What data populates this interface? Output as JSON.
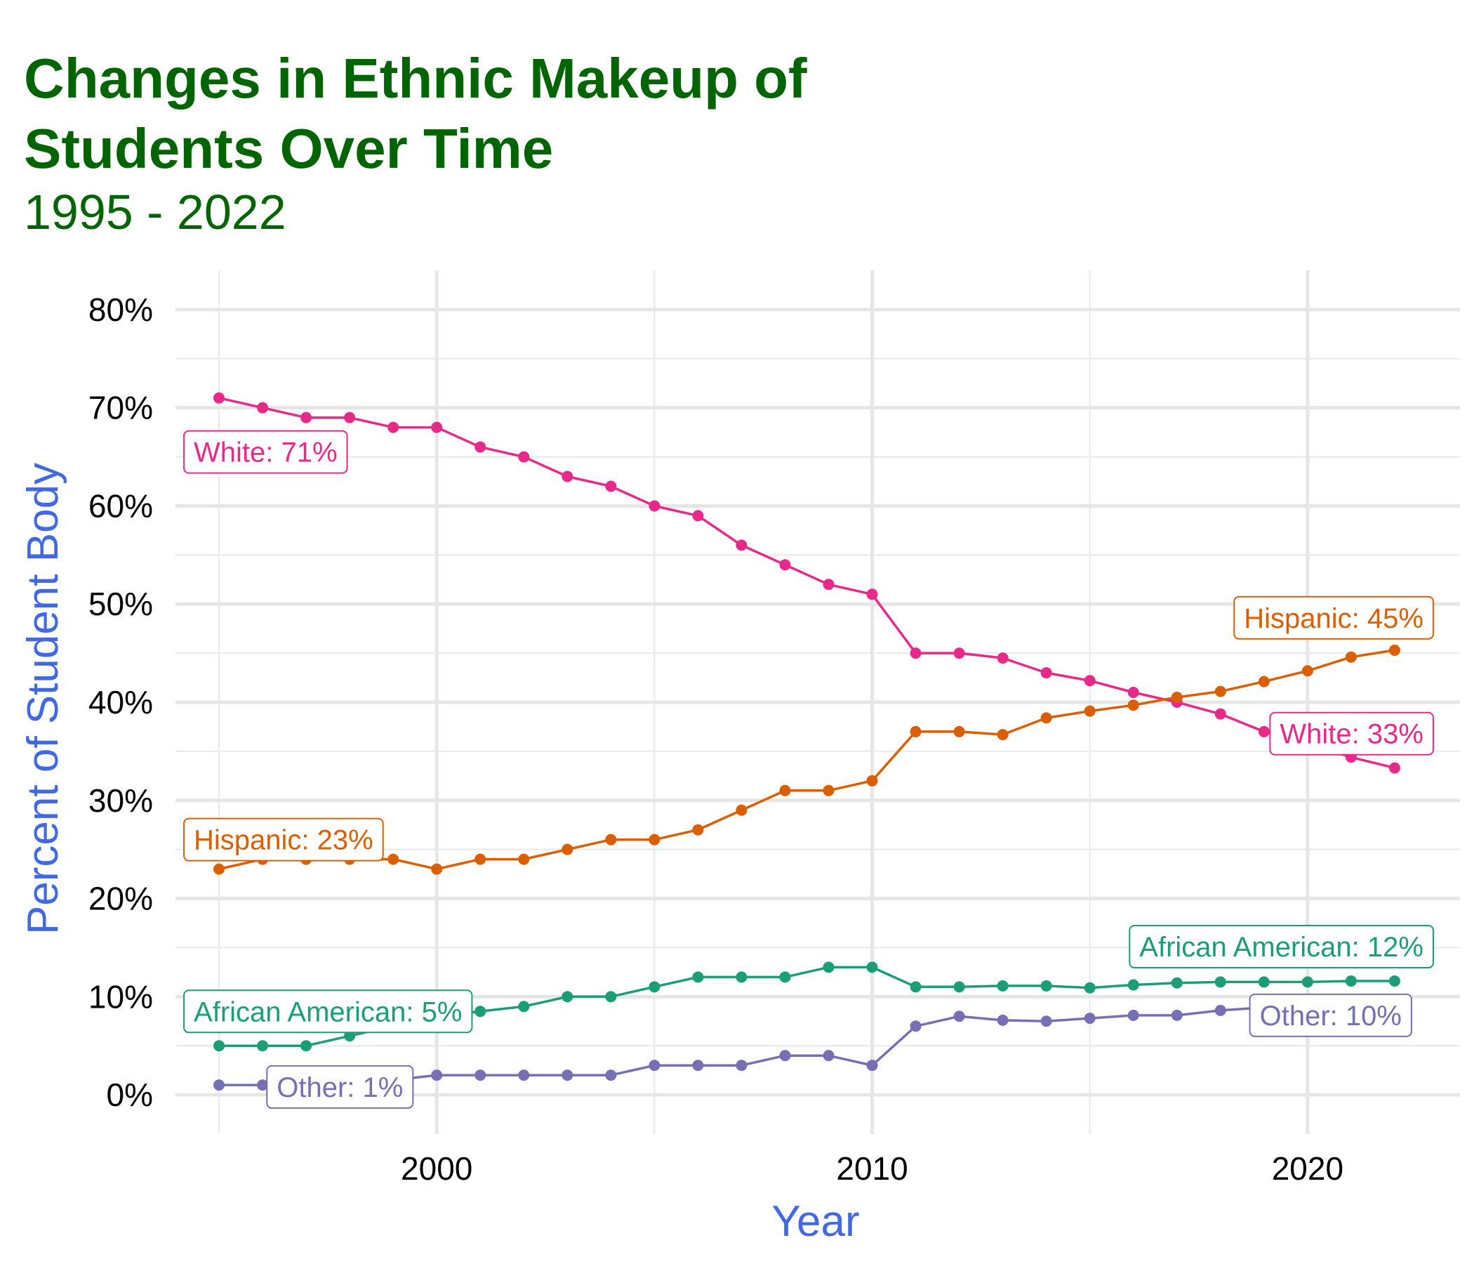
{
  "title": "Changes in Ethnic Makeup of Students Over Time",
  "subtitle": "1995 - 2022",
  "chart_data": {
    "type": "line",
    "xlabel": "Year",
    "ylabel": "Percent of Student Body",
    "xlim": [
      1994,
      2023.5
    ],
    "ylim": [
      -4,
      84
    ],
    "xticks": [
      2000,
      2010,
      2020
    ],
    "yticks": [
      0,
      10,
      20,
      30,
      40,
      50,
      60,
      70,
      80
    ],
    "ytick_labels": [
      "0%",
      "10%",
      "20%",
      "30%",
      "40%",
      "50%",
      "60%",
      "70%",
      "80%"
    ],
    "grid": true,
    "legend": "none",
    "x": [
      1995,
      1996,
      1997,
      1998,
      1999,
      2000,
      2001,
      2002,
      2003,
      2004,
      2005,
      2006,
      2007,
      2008,
      2009,
      2010,
      2011,
      2012,
      2013,
      2014,
      2015,
      2016,
      2017,
      2018,
      2019,
      2020,
      2021,
      2022
    ],
    "series": [
      {
        "name": "White",
        "color": "#E7298A",
        "values": [
          71,
          70,
          69,
          69,
          68,
          68,
          66,
          65,
          63,
          62,
          60,
          59,
          56,
          54,
          52,
          51,
          45,
          45,
          44.5,
          43,
          42.2,
          41,
          40,
          38.8,
          37,
          35.8,
          34.4,
          33.3
        ]
      },
      {
        "name": "Hispanic",
        "color": "#D95F02",
        "values": [
          23,
          24,
          24,
          24,
          24,
          23,
          24,
          24,
          25,
          26,
          26,
          27,
          29,
          31,
          31,
          32,
          37,
          37,
          36.7,
          38.4,
          39.1,
          39.7,
          40.5,
          41.1,
          42.1,
          43.2,
          44.6,
          45.3
        ]
      },
      {
        "name": "African American",
        "color": "#1B9E77",
        "values": [
          5,
          5,
          5,
          6,
          7,
          8,
          8.5,
          9,
          10,
          10,
          11,
          12,
          12,
          12,
          13,
          13,
          11,
          11,
          11.1,
          11.1,
          10.9,
          11.2,
          11.4,
          11.5,
          11.5,
          11.5,
          11.6,
          11.6
        ]
      },
      {
        "name": "Other",
        "color": "#7570B3",
        "values": [
          1,
          1,
          1,
          1,
          1.5,
          2,
          2,
          2,
          2,
          2,
          3,
          3,
          3,
          4,
          4,
          3,
          7,
          8,
          7.6,
          7.5,
          7.8,
          8.1,
          8.1,
          8.6,
          8.9,
          9.2,
          9.5,
          9.7
        ]
      }
    ],
    "annotations": [
      {
        "series": "White",
        "text": "White: 71%"
      },
      {
        "series": "White",
        "text": "White: 33%"
      },
      {
        "series": "Hispanic",
        "text": "Hispanic: 23%"
      },
      {
        "series": "Hispanic",
        "text": "Hispanic: 45%"
      },
      {
        "series": "African American",
        "text": "African American: 5%"
      },
      {
        "series": "African American",
        "text": "African American: 12%"
      },
      {
        "series": "Other",
        "text": "Other: 1%"
      },
      {
        "series": "Other",
        "text": "Other: 10%"
      }
    ]
  }
}
